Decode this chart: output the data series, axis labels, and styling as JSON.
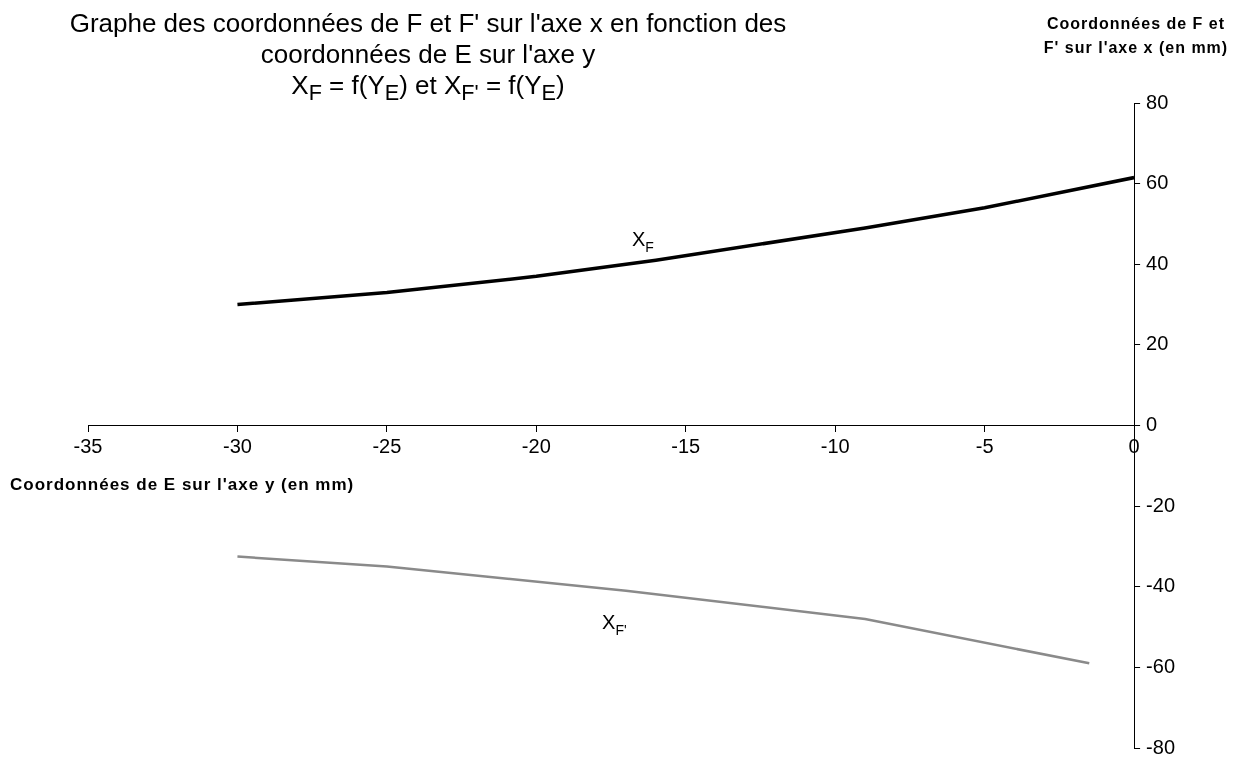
{
  "chart_data": {
    "type": "line",
    "title": "Graphe des coordonnées de F et F' sur l'axe x en fonction des coordonnées de E sur l'axe y",
    "subtitle": "X$_{F}$ = f(Y$_{E}$) et X$_{F'}$ = f(Y$_{E}$)",
    "xlabel": "Coordonnées de E sur l'axe y (en mm)",
    "ylabel": "Coordonnées de F et F' sur l'axe x (en mm)",
    "series": [
      {
        "name": "X$_{F}$",
        "color": "#000000",
        "x": [
          -30,
          -25,
          -20,
          -16,
          -9,
          -5,
          0
        ],
        "values": [
          30,
          33,
          37,
          41,
          49,
          54,
          61.5
        ]
      },
      {
        "name": "X$_{F'}$",
        "color": "#8a8a8a",
        "x": [
          -30,
          -25,
          -17,
          -9,
          -1.5
        ],
        "values": [
          -32.5,
          -35,
          -41,
          -48,
          -59
        ]
      }
    ],
    "xlim": [
      -35,
      0
    ],
    "xticks": [
      -35,
      -30,
      -25,
      -20,
      -15,
      -10,
      -5,
      0
    ],
    "ylim": [
      -80,
      80
    ],
    "yticks": [
      -80,
      -60,
      -40,
      -20,
      0,
      20,
      40,
      60,
      80
    ],
    "grid": false,
    "legend": false,
    "marker": "none",
    "line_style": "solid"
  }
}
